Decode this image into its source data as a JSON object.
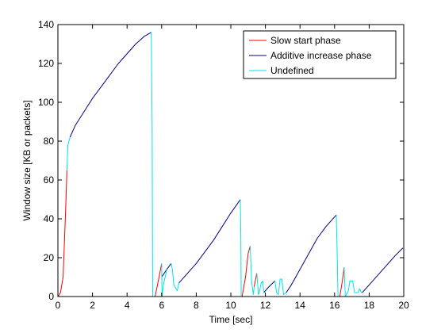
{
  "chart_data": {
    "type": "line",
    "title": "",
    "xlabel": "Time [sec]",
    "ylabel": "Window size [KB or packets]",
    "xlim": [
      0,
      20
    ],
    "ylim": [
      0,
      140
    ],
    "xticks": [
      0,
      2,
      4,
      6,
      8,
      10,
      12,
      14,
      16,
      18,
      20
    ],
    "yticks": [
      0,
      20,
      40,
      60,
      80,
      100,
      120,
      140
    ],
    "grid": false,
    "legend_position": "top-right",
    "series": [
      {
        "name": "Slow start phase",
        "color": "#ff0000",
        "segments": [
          [
            [
              0,
              0
            ],
            [
              0.15,
              2
            ],
            [
              0.3,
              10
            ],
            [
              0.45,
              45
            ],
            [
              0.52,
              65
            ]
          ],
          [
            [
              5.62,
              0
            ],
            [
              5.85,
              10
            ],
            [
              6.0,
              17
            ]
          ],
          [
            [
              10.65,
              0
            ],
            [
              10.85,
              10
            ],
            [
              11.0,
              22
            ],
            [
              11.12,
              26
            ]
          ],
          [
            [
              11.35,
              5
            ],
            [
              11.5,
              12
            ]
          ],
          [
            [
              16.3,
              0
            ],
            [
              16.45,
              8
            ],
            [
              16.55,
              15
            ]
          ]
        ]
      },
      {
        "name": "Additive increase phase",
        "color": "#00008b",
        "segments": [
          [
            [
              0.7,
              82
            ],
            [
              1.0,
              88
            ],
            [
              1.5,
              95
            ],
            [
              2,
              102
            ],
            [
              2.5,
              108
            ],
            [
              3,
              114
            ],
            [
              3.5,
              120
            ],
            [
              4,
              125
            ],
            [
              4.5,
              130
            ],
            [
              5,
              134
            ],
            [
              5.4,
              136
            ]
          ],
          [
            [
              6.0,
              10
            ],
            [
              6.3,
              14
            ],
            [
              6.55,
              17
            ]
          ],
          [
            [
              7.0,
              7
            ],
            [
              7.5,
              12
            ],
            [
              8,
              17
            ],
            [
              8.5,
              23
            ],
            [
              9,
              29
            ],
            [
              9.5,
              36
            ],
            [
              10,
              43
            ],
            [
              10.4,
              48
            ],
            [
              10.55,
              50
            ]
          ],
          [
            [
              11.9,
              2
            ],
            [
              12.2,
              5
            ],
            [
              12.55,
              8
            ]
          ],
          [
            [
              13.2,
              2
            ],
            [
              13.5,
              6
            ],
            [
              14,
              14
            ],
            [
              14.5,
              22
            ],
            [
              15,
              30
            ],
            [
              15.5,
              36
            ],
            [
              16,
              41
            ],
            [
              16.1,
              42
            ]
          ],
          [
            [
              17.6,
              2
            ],
            [
              18,
              6
            ],
            [
              18.5,
              11
            ],
            [
              19,
              16
            ],
            [
              19.5,
              21
            ],
            [
              19.95,
              25
            ]
          ]
        ]
      },
      {
        "name": "Undefined",
        "color": "#00e5ee",
        "segments": [
          [
            [
              0.52,
              65
            ],
            [
              0.58,
              78
            ],
            [
              0.7,
              82
            ]
          ],
          [
            [
              5.4,
              136
            ],
            [
              5.45,
              88
            ],
            [
              5.48,
              0
            ],
            [
              5.62,
              0
            ]
          ],
          [
            [
              6.0,
              17
            ],
            [
              6.02,
              0
            ],
            [
              6.1,
              6
            ],
            [
              6.2,
              10
            ],
            [
              6.3,
              14
            ]
          ],
          [
            [
              6.55,
              17
            ],
            [
              6.62,
              14
            ],
            [
              6.7,
              6
            ],
            [
              6.9,
              3
            ],
            [
              7.0,
              7
            ]
          ],
          [
            [
              10.55,
              50
            ],
            [
              10.58,
              30
            ],
            [
              10.6,
              0
            ],
            [
              10.65,
              0
            ]
          ],
          [
            [
              11.12,
              26
            ],
            [
              11.2,
              8
            ],
            [
              11.3,
              1
            ],
            [
              11.35,
              5
            ]
          ],
          [
            [
              11.5,
              12
            ],
            [
              11.6,
              1
            ],
            [
              11.65,
              2
            ],
            [
              11.75,
              7
            ],
            [
              11.85,
              8
            ],
            [
              11.9,
              2
            ]
          ],
          [
            [
              12.55,
              8
            ],
            [
              12.65,
              2
            ],
            [
              12.75,
              1
            ],
            [
              12.85,
              9
            ],
            [
              12.95,
              9
            ],
            [
              13.05,
              1
            ],
            [
              13.2,
              2
            ]
          ],
          [
            [
              16.1,
              42
            ],
            [
              16.15,
              22
            ],
            [
              16.2,
              0
            ],
            [
              16.3,
              0
            ]
          ],
          [
            [
              16.55,
              15
            ],
            [
              16.62,
              0
            ],
            [
              16.8,
              3
            ],
            [
              16.88,
              8
            ],
            [
              17.05,
              8
            ],
            [
              17.15,
              2
            ],
            [
              17.35,
              2
            ],
            [
              17.45,
              4
            ],
            [
              17.55,
              2
            ],
            [
              17.6,
              2
            ]
          ]
        ]
      }
    ]
  }
}
